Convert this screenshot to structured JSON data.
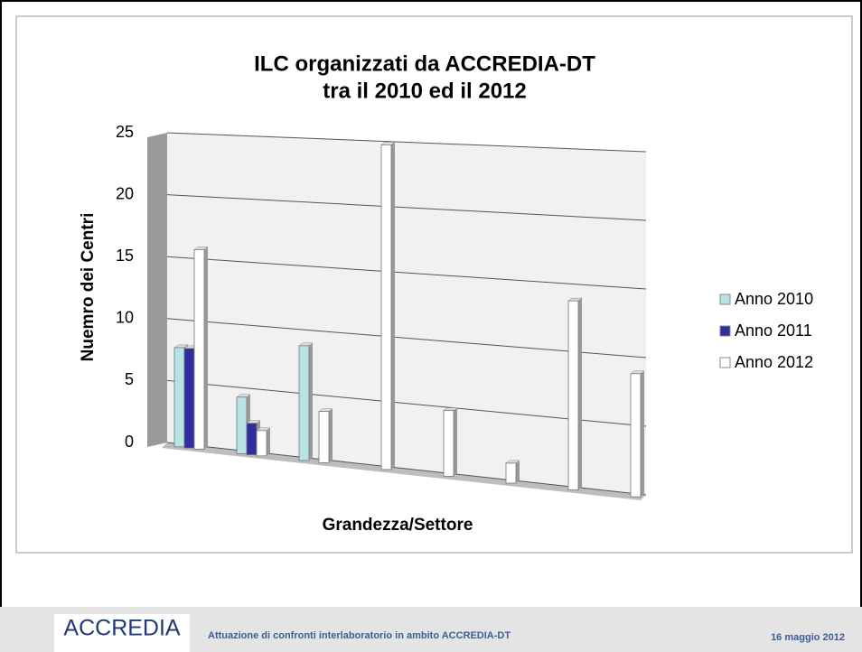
{
  "chart_data": {
    "type": "bar3d",
    "title": [
      "ILC organizzati da ACCREDIA-DT",
      "tra il 2010 ed il 2012"
    ],
    "ylabel": "Nuemro dei Centri",
    "xlabel": "Grandezza/Settore",
    "categories": [
      null,
      null,
      null,
      null,
      null,
      null,
      null,
      null
    ],
    "series": [
      {
        "name": "Anno 2010",
        "color": "#b7e3e4",
        "values": [
          8,
          4.5,
          9,
          null,
          null,
          null,
          null,
          null
        ]
      },
      {
        "name": "Anno 2011",
        "color": "#2e2e9e",
        "values": [
          8,
          2.5,
          null,
          null,
          null,
          null,
          null,
          null
        ]
      },
      {
        "name": "Anno 2012",
        "color": "#ffffff",
        "values": [
          16,
          2,
          4,
          25,
          5,
          1.5,
          14,
          9
        ]
      }
    ],
    "ylim": [
      0,
      25
    ],
    "yticks": [
      0,
      5,
      10,
      15,
      20,
      25
    ],
    "grid": true,
    "legend": "right"
  },
  "footer": {
    "logo": "ACCREDIA",
    "text": "Attuazione di confronti interlaboratorio in ambito ACCREDIA-DT",
    "date": "16 maggio 2012"
  }
}
